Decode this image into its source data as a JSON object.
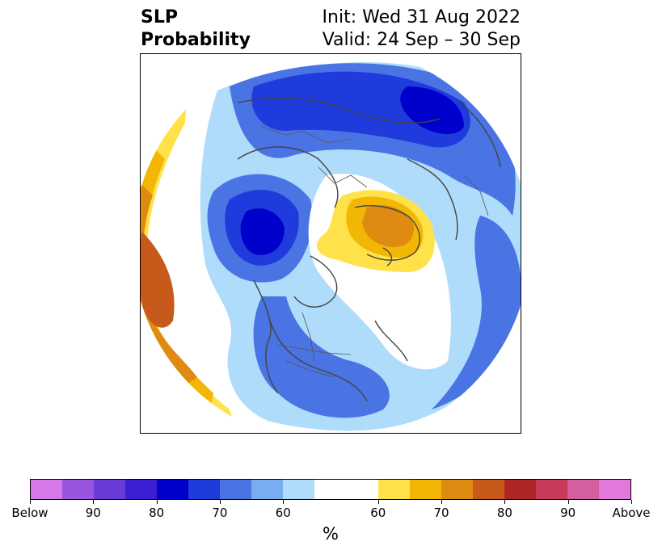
{
  "title": {
    "left_line1": "SLP",
    "left_line2": "Probability",
    "right_line1": "Init: Wed 31 Aug 2022",
    "right_line2": "Valid: 24 Sep – 30 Sep"
  },
  "colorbar": {
    "unit": "%",
    "colors": [
      "#d678e8",
      "#9a55e0",
      "#6b3bd9",
      "#3b1fd2",
      "#0000cc",
      "#1f3bdb",
      "#4a74e3",
      "#78aef0",
      "#aedcfa",
      "#ffffff",
      "#ffffff",
      "#ffe14a",
      "#f2b705",
      "#df8a10",
      "#c75a1a",
      "#b02626",
      "#c93a5a",
      "#d45ea0",
      "#e378db"
    ],
    "tick_labels": [
      "Below",
      "90",
      "80",
      "70",
      "60",
      "60",
      "70",
      "80",
      "90",
      "Above"
    ]
  },
  "map": {
    "projection": "north-polar-stereographic",
    "fields": [
      {
        "category": "below",
        "level": "60",
        "color": "#aedcfa"
      },
      {
        "category": "below",
        "level": "70",
        "color": "#4a74e3"
      },
      {
        "category": "below",
        "level": "80",
        "color": "#0000cc"
      },
      {
        "category": "above",
        "level": "60",
        "color": "#ffe14a"
      },
      {
        "category": "above",
        "level": "70",
        "color": "#df8a10"
      }
    ]
  }
}
